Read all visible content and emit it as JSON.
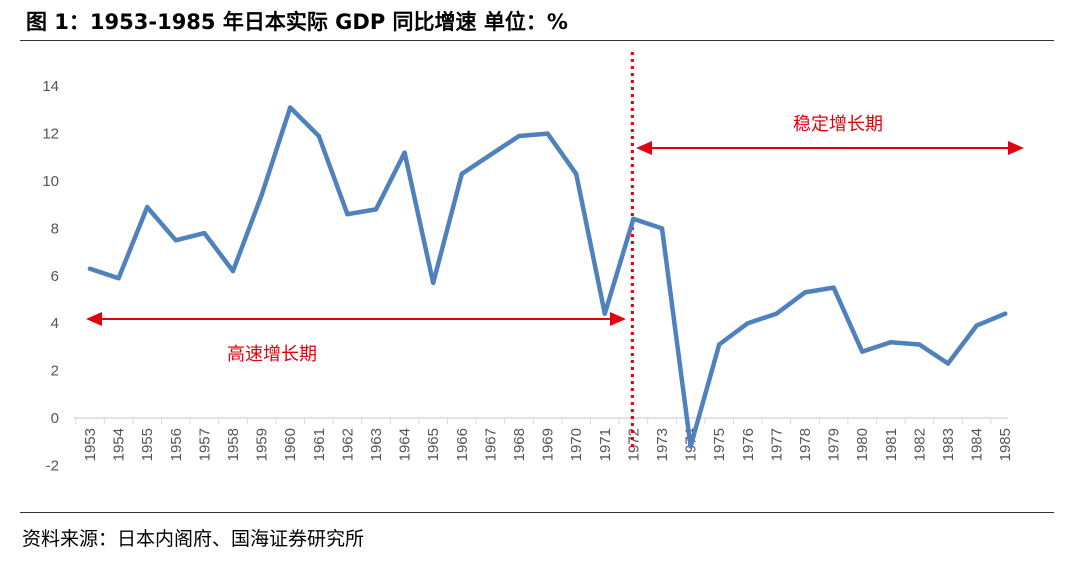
{
  "header": {
    "title": "图 1：1953-1985 年日本实际 GDP 同比增速  单位：%"
  },
  "footer": {
    "source": "资料来源：日本内阁府、国海证券研究所"
  },
  "colors": {
    "series": "#4f81bd",
    "annotation": "#e3000f",
    "axis": "#d9d9d9",
    "tick_text": "#555555"
  },
  "chart_data": {
    "type": "line",
    "title": "1953-1985 年日本实际 GDP 同比增速",
    "unit": "%",
    "x": [
      "1953",
      "1954",
      "1955",
      "1956",
      "1957",
      "1958",
      "1959",
      "1960",
      "1961",
      "1962",
      "1963",
      "1964",
      "1965",
      "1966",
      "1967",
      "1968",
      "1969",
      "1970",
      "1971",
      "1972",
      "1973",
      "1974",
      "1975",
      "1976",
      "1977",
      "1978",
      "1979",
      "1980",
      "1981",
      "1982",
      "1983",
      "1984",
      "1985"
    ],
    "series": [
      {
        "values": [
          6.3,
          5.9,
          8.9,
          7.5,
          7.8,
          6.2,
          9.4,
          13.1,
          11.9,
          8.6,
          8.8,
          11.2,
          5.7,
          10.3,
          11.1,
          11.9,
          12.0,
          10.3,
          4.4,
          8.4,
          8.0,
          -1.2,
          3.1,
          4.0,
          4.4,
          5.3,
          5.5,
          2.8,
          3.2,
          3.1,
          2.3,
          3.9,
          4.4
        ]
      }
    ],
    "ylim": [
      -2,
      14
    ],
    "yticks": [
      "-2",
      "0",
      "2",
      "4",
      "6",
      "8",
      "10",
      "12",
      "14"
    ],
    "grid": false,
    "legend": "none",
    "annotations": [
      {
        "label": "高速增长期",
        "from": "1953",
        "to": "1971"
      },
      {
        "label": "稳定增长期",
        "from": "1972",
        "to": "1985"
      }
    ],
    "divider_at": "1972"
  }
}
